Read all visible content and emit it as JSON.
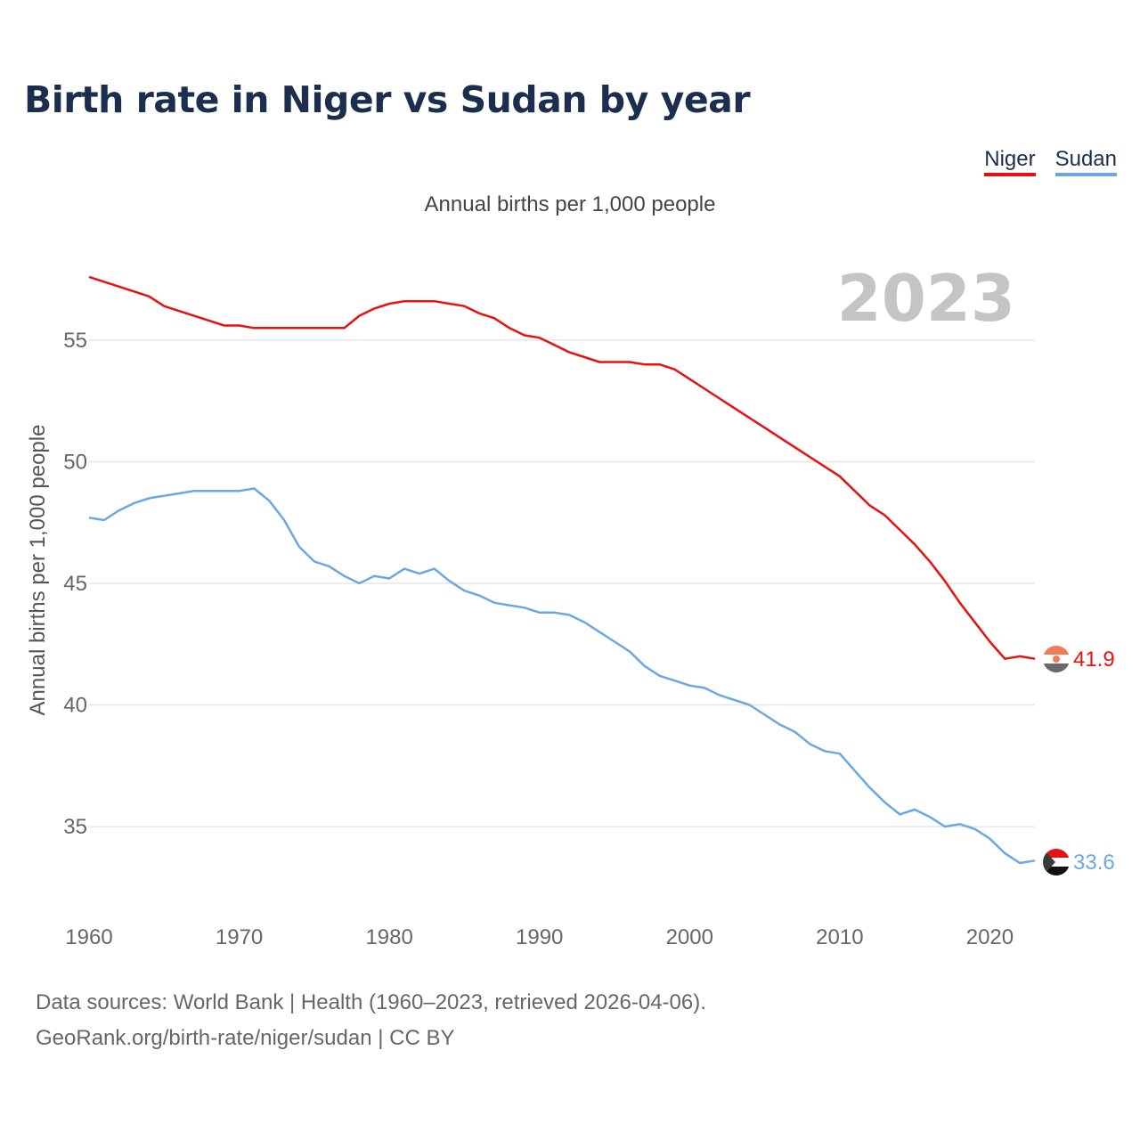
{
  "title": "Birth rate in Niger vs Sudan by year",
  "subtitle": "Annual births per 1,000 people",
  "year_watermark": "2023",
  "legend": [
    {
      "label": "Niger",
      "color": "#e8110f"
    },
    {
      "label": "Sudan",
      "color": "#6aa8e4"
    }
  ],
  "footer": {
    "line1": "Data sources: World Bank | Health (1960–2023, retrieved 2026-04-06).",
    "line2": "GeoRank.org/birth-rate/niger/sudan | CC BY"
  },
  "chart_data": {
    "type": "line",
    "title": "Birth rate in Niger vs Sudan by year",
    "ylabel": "Annual births per 1,000 people",
    "xlabel": "",
    "xlim": [
      1960,
      2023
    ],
    "ylim": [
      32,
      58
    ],
    "x_ticks": [
      1960,
      1970,
      1980,
      1990,
      2000,
      2010,
      2020
    ],
    "y_ticks": [
      35,
      40,
      45,
      50,
      55
    ],
    "grid": true,
    "legend_position": "top-right",
    "x": [
      1960,
      1961,
      1962,
      1963,
      1964,
      1965,
      1966,
      1967,
      1968,
      1969,
      1970,
      1971,
      1972,
      1973,
      1974,
      1975,
      1976,
      1977,
      1978,
      1979,
      1980,
      1981,
      1982,
      1983,
      1984,
      1985,
      1986,
      1987,
      1988,
      1989,
      1990,
      1991,
      1992,
      1993,
      1994,
      1995,
      1996,
      1997,
      1998,
      1999,
      2000,
      2001,
      2002,
      2003,
      2004,
      2005,
      2006,
      2007,
      2008,
      2009,
      2010,
      2011,
      2012,
      2013,
      2014,
      2015,
      2016,
      2017,
      2018,
      2019,
      2020,
      2021,
      2022,
      2023
    ],
    "series": [
      {
        "name": "Niger",
        "color": "#e8110f",
        "end_label": "41.9",
        "values": [
          57.6,
          57.4,
          57.2,
          57.0,
          56.8,
          56.4,
          56.2,
          56.0,
          55.8,
          55.6,
          55.6,
          55.5,
          55.5,
          55.5,
          55.5,
          55.5,
          55.5,
          55.5,
          56.0,
          56.3,
          56.5,
          56.6,
          56.6,
          56.6,
          56.5,
          56.4,
          56.1,
          55.9,
          55.5,
          55.2,
          55.1,
          54.8,
          54.5,
          54.3,
          54.1,
          54.1,
          54.1,
          54.0,
          54.0,
          53.8,
          53.4,
          53.0,
          52.6,
          52.2,
          51.8,
          51.4,
          51.0,
          50.6,
          50.2,
          49.8,
          49.4,
          48.8,
          48.2,
          47.8,
          47.2,
          46.6,
          45.9,
          45.1,
          44.2,
          43.4,
          42.6,
          41.9,
          42.0,
          41.9
        ]
      },
      {
        "name": "Sudan",
        "color": "#6aa8e4",
        "end_label": "33.6",
        "values": [
          47.7,
          47.6,
          48.0,
          48.3,
          48.5,
          48.6,
          48.7,
          48.8,
          48.8,
          48.8,
          48.8,
          48.9,
          48.4,
          47.6,
          46.5,
          45.9,
          45.7,
          45.3,
          45.0,
          45.3,
          45.2,
          45.6,
          45.4,
          45.6,
          45.1,
          44.7,
          44.5,
          44.2,
          44.1,
          44.0,
          43.8,
          43.8,
          43.7,
          43.4,
          43.0,
          42.6,
          42.2,
          41.6,
          41.2,
          41.0,
          40.8,
          40.7,
          40.4,
          40.2,
          40.0,
          39.6,
          39.2,
          38.9,
          38.4,
          38.1,
          38.0,
          37.3,
          36.6,
          36.0,
          35.5,
          35.7,
          35.4,
          35.0,
          35.1,
          34.9,
          34.5,
          33.9,
          33.5,
          33.6
        ]
      }
    ]
  }
}
